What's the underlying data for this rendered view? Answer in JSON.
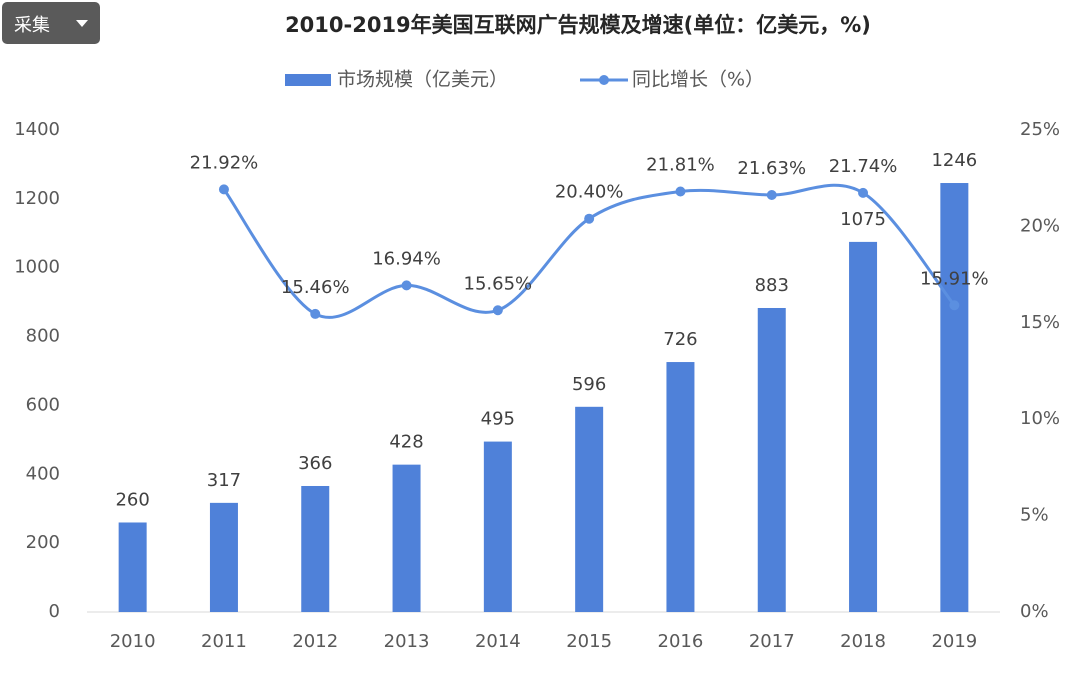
{
  "toolbar": {
    "button": "采集"
  },
  "chart_data": {
    "type": "combo",
    "title": "2010-2019年美国互联网广告规模及增速(单位：亿美元，%)",
    "categories": [
      "2010",
      "2011",
      "2012",
      "2013",
      "2014",
      "2015",
      "2016",
      "2017",
      "2018",
      "2019"
    ],
    "series": [
      {
        "name": "市场规模（亿美元）",
        "type": "bar",
        "color": "#4f81d9",
        "values": [
          260,
          317,
          366,
          428,
          495,
          596,
          726,
          883,
          1075,
          1246
        ]
      },
      {
        "name": "同比增长（%）",
        "type": "line",
        "axis": "y2",
        "color": "#5b8fe0",
        "values": [
          null,
          21.92,
          15.46,
          16.94,
          15.65,
          20.4,
          21.81,
          21.63,
          21.74,
          15.91
        ],
        "value_labels": [
          null,
          "21.92%",
          "15.46%",
          "16.94%",
          "15.65%",
          "20.40%",
          "21.81%",
          "21.63%",
          "21.74%",
          "15.91%"
        ]
      }
    ],
    "ylim": [
      0,
      1400
    ],
    "yticks": [
      0,
      200,
      400,
      600,
      800,
      1000,
      1200,
      1400
    ],
    "y2lim": [
      0,
      25
    ],
    "y2ticks": [
      {
        "value": 0,
        "label": "0%"
      },
      {
        "value": 5,
        "label": "5%"
      },
      {
        "value": 10,
        "label": "10%"
      },
      {
        "value": 15,
        "label": "15%"
      },
      {
        "value": 20,
        "label": "20%"
      },
      {
        "value": 25,
        "label": "25%"
      }
    ],
    "legend": "top",
    "grid": false
  }
}
